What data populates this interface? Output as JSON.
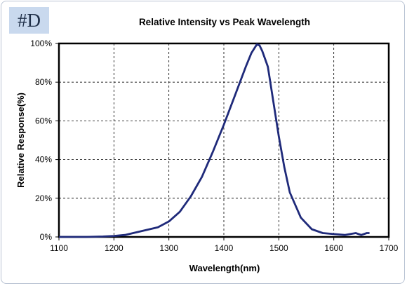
{
  "badge": "#D",
  "chart_data": {
    "type": "line",
    "title": "Relative Intensity vs Peak Wavelength",
    "xlabel": "Wavelength(nm)",
    "ylabel": "Relative Response(%)",
    "xlim": [
      1100,
      1700
    ],
    "ylim": [
      0,
      100
    ],
    "x_ticks": [
      "1100",
      "1200",
      "1300",
      "1400",
      "1500",
      "1600",
      "1700"
    ],
    "y_ticks": [
      "0%",
      "20%",
      "40%",
      "60%",
      "80%",
      "100%"
    ],
    "grid": true,
    "grid_style": "dashed",
    "line_color": "#1f2a7a",
    "series": [
      {
        "name": "",
        "x": [
          1100,
          1150,
          1180,
          1200,
          1220,
          1250,
          1280,
          1300,
          1320,
          1340,
          1360,
          1380,
          1400,
          1420,
          1440,
          1450,
          1460,
          1465,
          1470,
          1480,
          1490,
          1500,
          1510,
          1520,
          1540,
          1560,
          1580,
          1600,
          1620,
          1640,
          1650,
          1660,
          1665
        ],
        "y": [
          0,
          0,
          0.2,
          0.5,
          1,
          3,
          5,
          8,
          13,
          21,
          31,
          44,
          58,
          73,
          88,
          95,
          99.5,
          99,
          96,
          88,
          70,
          52,
          36,
          23,
          10,
          4,
          2,
          1.5,
          1,
          2,
          1,
          2,
          2
        ]
      }
    ]
  }
}
